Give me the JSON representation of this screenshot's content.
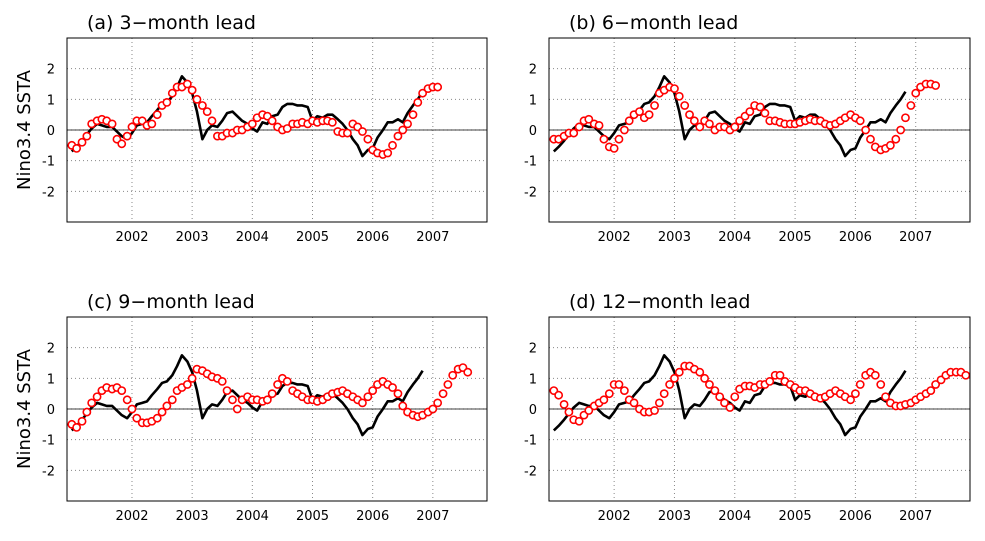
{
  "chart_data": [
    {
      "type": "line",
      "title": "(a) 3−month lead",
      "ylabel": "Nino3.4  SSTA",
      "xlim": [
        2000.92,
        2007.9
      ],
      "xticks": [
        2002,
        2003,
        2004,
        2005,
        2006,
        2007
      ],
      "ylim": [
        -3,
        3
      ],
      "yticks": [
        -2,
        -1,
        0,
        1,
        2
      ],
      "grid": true,
      "reference_line": 0,
      "x": [
        2001.0,
        2001.08,
        2001.17,
        2001.25,
        2001.33,
        2001.42,
        2001.5,
        2001.58,
        2001.67,
        2001.75,
        2001.83,
        2001.92,
        2002.0,
        2002.08,
        2002.17,
        2002.25,
        2002.33,
        2002.42,
        2002.5,
        2002.58,
        2002.67,
        2002.75,
        2002.83,
        2002.92,
        2003.0,
        2003.08,
        2003.17,
        2003.25,
        2003.33,
        2003.42,
        2003.5,
        2003.58,
        2003.67,
        2003.75,
        2003.83,
        2003.92,
        2004.0,
        2004.08,
        2004.17,
        2004.25,
        2004.33,
        2004.42,
        2004.5,
        2004.58,
        2004.67,
        2004.75,
        2004.83,
        2004.92,
        2005.0,
        2005.08,
        2005.17,
        2005.25,
        2005.33,
        2005.42,
        2005.5,
        2005.58,
        2005.67,
        2005.75,
        2005.83,
        2005.92,
        2006.0,
        2006.08,
        2006.17,
        2006.25,
        2006.33,
        2006.42,
        2006.5,
        2006.58,
        2006.67,
        2006.75,
        2006.83,
        2006.92,
        2007.0,
        2007.08
      ],
      "series": [
        {
          "color": "#000000",
          "style": "line",
          "values": [
            -0.7,
            -0.55,
            -0.35,
            -0.15,
            0.05,
            0.2,
            0.15,
            0.1,
            0.1,
            -0.05,
            -0.2,
            -0.3,
            -0.1,
            0.15,
            0.2,
            0.25,
            0.45,
            0.65,
            0.85,
            0.9,
            1.1,
            1.4,
            1.75,
            1.55,
            1.2,
            0.6,
            -0.3,
            0.0,
            0.15,
            0.1,
            0.3,
            0.55,
            0.6,
            0.45,
            0.3,
            0.2,
            0.05,
            -0.05,
            0.25,
            0.2,
            0.45,
            0.5,
            0.75,
            0.85,
            0.85,
            0.8,
            0.8,
            0.75,
            0.3,
            0.45,
            0.4,
            0.5,
            0.5,
            0.35,
            0.2,
            0.0,
            -0.3,
            -0.5,
            -0.85,
            -0.65,
            -0.6,
            -0.25,
            0.0,
            0.25,
            0.25,
            0.35,
            0.25,
            0.55,
            0.8,
            1.0,
            1.25,
            null,
            null,
            null
          ]
        },
        {
          "color": "#ff0000",
          "style": "markers",
          "values": [
            -0.5,
            -0.6,
            -0.4,
            -0.2,
            0.2,
            0.3,
            0.35,
            0.3,
            0.2,
            -0.3,
            -0.45,
            -0.2,
            0.1,
            0.3,
            0.3,
            0.15,
            0.2,
            0.5,
            0.8,
            0.9,
            1.2,
            1.4,
            1.4,
            1.5,
            1.3,
            1.0,
            0.8,
            0.6,
            0.3,
            -0.2,
            -0.2,
            -0.1,
            -0.1,
            0.0,
            0.0,
            0.1,
            0.2,
            0.4,
            0.5,
            0.45,
            0.3,
            0.1,
            0.0,
            0.05,
            0.2,
            0.2,
            0.25,
            0.2,
            0.3,
            0.25,
            0.3,
            0.3,
            0.25,
            -0.05,
            -0.1,
            -0.1,
            0.2,
            0.1,
            -0.05,
            -0.3,
            -0.65,
            -0.75,
            -0.8,
            -0.75,
            -0.5,
            -0.2,
            0.0,
            0.2,
            0.5,
            0.9,
            1.2,
            1.35,
            1.4,
            1.4
          ]
        }
      ]
    },
    {
      "type": "line",
      "title": "(b) 6−month lead",
      "xlim": [
        2000.92,
        2007.9
      ],
      "xticks": [
        2002,
        2003,
        2004,
        2005,
        2006,
        2007
      ],
      "ylim": [
        -3,
        3
      ],
      "yticks": [
        -2,
        -1,
        0,
        1,
        2
      ],
      "grid": true,
      "reference_line": 0,
      "x": [
        2001.0,
        2001.08,
        2001.17,
        2001.25,
        2001.33,
        2001.42,
        2001.5,
        2001.58,
        2001.67,
        2001.75,
        2001.83,
        2001.92,
        2002.0,
        2002.08,
        2002.17,
        2002.25,
        2002.33,
        2002.42,
        2002.5,
        2002.58,
        2002.67,
        2002.75,
        2002.83,
        2002.92,
        2003.0,
        2003.08,
        2003.17,
        2003.25,
        2003.33,
        2003.42,
        2003.5,
        2003.58,
        2003.67,
        2003.75,
        2003.83,
        2003.92,
        2004.0,
        2004.08,
        2004.17,
        2004.25,
        2004.33,
        2004.42,
        2004.5,
        2004.58,
        2004.67,
        2004.75,
        2004.83,
        2004.92,
        2005.0,
        2005.08,
        2005.17,
        2005.25,
        2005.33,
        2005.42,
        2005.5,
        2005.58,
        2005.67,
        2005.75,
        2005.83,
        2005.92,
        2006.0,
        2006.08,
        2006.17,
        2006.25,
        2006.33,
        2006.42,
        2006.5,
        2006.58,
        2006.67,
        2006.75,
        2006.83,
        2006.92,
        2007.0,
        2007.08,
        2007.17,
        2007.25,
        2007.33
      ],
      "series": [
        {
          "color": "#000000",
          "style": "line",
          "values": [
            -0.7,
            -0.55,
            -0.35,
            -0.15,
            0.05,
            0.2,
            0.15,
            0.1,
            0.1,
            -0.05,
            -0.2,
            -0.3,
            -0.1,
            0.15,
            0.2,
            0.25,
            0.45,
            0.65,
            0.85,
            0.9,
            1.1,
            1.4,
            1.75,
            1.55,
            1.2,
            0.6,
            -0.3,
            0.0,
            0.15,
            0.1,
            0.3,
            0.55,
            0.6,
            0.45,
            0.3,
            0.2,
            0.05,
            -0.05,
            0.25,
            0.2,
            0.45,
            0.5,
            0.75,
            0.85,
            0.85,
            0.8,
            0.8,
            0.75,
            0.3,
            0.45,
            0.4,
            0.5,
            0.5,
            0.35,
            0.2,
            0.0,
            -0.3,
            -0.5,
            -0.85,
            -0.65,
            -0.6,
            -0.25,
            0.0,
            0.25,
            0.25,
            0.35,
            0.25,
            0.55,
            0.8,
            1.0,
            1.25,
            null,
            null,
            null,
            null,
            null,
            null
          ]
        },
        {
          "color": "#ff0000",
          "style": "markers",
          "values": [
            -0.3,
            -0.3,
            -0.2,
            -0.1,
            -0.1,
            0.1,
            0.3,
            0.35,
            0.2,
            0.15,
            -0.3,
            -0.55,
            -0.6,
            -0.3,
            0.0,
            0.3,
            0.5,
            0.6,
            0.4,
            0.5,
            0.8,
            1.2,
            1.3,
            1.4,
            1.35,
            1.1,
            0.8,
            0.5,
            0.3,
            0.1,
            0.3,
            0.2,
            0.0,
            0.1,
            0.1,
            0.0,
            0.1,
            0.3,
            0.45,
            0.6,
            0.8,
            0.75,
            0.55,
            0.3,
            0.3,
            0.25,
            0.2,
            0.2,
            0.2,
            0.25,
            0.3,
            0.35,
            0.3,
            0.3,
            0.2,
            0.15,
            0.2,
            0.3,
            0.4,
            0.5,
            0.4,
            0.3,
            0.0,
            -0.3,
            -0.55,
            -0.65,
            -0.6,
            -0.5,
            -0.3,
            0.0,
            0.4,
            0.8,
            1.2,
            1.4,
            1.5,
            1.5,
            1.45
          ]
        }
      ]
    },
    {
      "type": "line",
      "title": "(c) 9−month lead",
      "ylabel": "Nino3.4  SSTA",
      "xlim": [
        2000.92,
        2007.9
      ],
      "xticks": [
        2002,
        2003,
        2004,
        2005,
        2006,
        2007
      ],
      "ylim": [
        -3,
        3
      ],
      "yticks": [
        -2,
        -1,
        0,
        1,
        2
      ],
      "grid": true,
      "reference_line": 0,
      "x": [
        2001.0,
        2001.08,
        2001.17,
        2001.25,
        2001.33,
        2001.42,
        2001.5,
        2001.58,
        2001.67,
        2001.75,
        2001.83,
        2001.92,
        2002.0,
        2002.08,
        2002.17,
        2002.25,
        2002.33,
        2002.42,
        2002.5,
        2002.58,
        2002.67,
        2002.75,
        2002.83,
        2002.92,
        2003.0,
        2003.08,
        2003.17,
        2003.25,
        2003.33,
        2003.42,
        2003.5,
        2003.58,
        2003.67,
        2003.75,
        2003.83,
        2003.92,
        2004.0,
        2004.08,
        2004.17,
        2004.25,
        2004.33,
        2004.42,
        2004.5,
        2004.58,
        2004.67,
        2004.75,
        2004.83,
        2004.92,
        2005.0,
        2005.08,
        2005.17,
        2005.25,
        2005.33,
        2005.42,
        2005.5,
        2005.58,
        2005.67,
        2005.75,
        2005.83,
        2005.92,
        2006.0,
        2006.08,
        2006.17,
        2006.25,
        2006.33,
        2006.42,
        2006.5,
        2006.58,
        2006.67,
        2006.75,
        2006.83,
        2006.92,
        2007.0,
        2007.08,
        2007.17,
        2007.25,
        2007.33,
        2007.42,
        2007.5,
        2007.58
      ],
      "series": [
        {
          "color": "#000000",
          "style": "line",
          "values": [
            -0.7,
            -0.55,
            -0.35,
            -0.15,
            0.05,
            0.2,
            0.15,
            0.1,
            0.1,
            -0.05,
            -0.2,
            -0.3,
            -0.1,
            0.15,
            0.2,
            0.25,
            0.45,
            0.65,
            0.85,
            0.9,
            1.1,
            1.4,
            1.75,
            1.55,
            1.2,
            0.6,
            -0.3,
            0.0,
            0.15,
            0.1,
            0.3,
            0.55,
            0.6,
            0.45,
            0.3,
            0.2,
            0.05,
            -0.05,
            0.25,
            0.2,
            0.45,
            0.5,
            0.75,
            0.85,
            0.85,
            0.8,
            0.8,
            0.75,
            0.3,
            0.45,
            0.4,
            0.5,
            0.5,
            0.35,
            0.2,
            0.0,
            -0.3,
            -0.5,
            -0.85,
            -0.65,
            -0.6,
            -0.25,
            0.0,
            0.25,
            0.25,
            0.35,
            0.25,
            0.55,
            0.8,
            1.0,
            1.25,
            null,
            null,
            null,
            null,
            null,
            null,
            null,
            null,
            null
          ]
        },
        {
          "color": "#ff0000",
          "style": "markers",
          "values": [
            -0.5,
            -0.6,
            -0.4,
            -0.1,
            0.2,
            0.4,
            0.6,
            0.7,
            0.65,
            0.7,
            0.6,
            0.3,
            0.0,
            -0.3,
            -0.45,
            -0.45,
            -0.4,
            -0.3,
            -0.1,
            0.1,
            0.3,
            0.6,
            0.7,
            0.8,
            1.0,
            1.3,
            1.25,
            1.15,
            1.05,
            1.0,
            0.9,
            0.6,
            0.3,
            0.0,
            0.3,
            0.4,
            0.3,
            0.3,
            0.25,
            0.3,
            0.5,
            0.8,
            1.0,
            0.9,
            0.6,
            0.5,
            0.4,
            0.3,
            0.3,
            0.25,
            0.3,
            0.4,
            0.5,
            0.55,
            0.6,
            0.5,
            0.4,
            0.3,
            0.2,
            0.4,
            0.6,
            0.8,
            0.9,
            0.8,
            0.7,
            0.5,
            0.1,
            -0.1,
            -0.2,
            -0.25,
            -0.2,
            -0.1,
            0.0,
            0.2,
            0.5,
            0.8,
            1.1,
            1.3,
            1.35,
            1.2
          ]
        }
      ]
    },
    {
      "type": "line",
      "title": "(d) 12−month lead",
      "xlim": [
        2000.92,
        2007.9
      ],
      "xticks": [
        2002,
        2003,
        2004,
        2005,
        2006,
        2007
      ],
      "ylim": [
        -3,
        3
      ],
      "yticks": [
        -2,
        -1,
        0,
        1,
        2
      ],
      "grid": true,
      "reference_line": 0,
      "x": [
        2001.0,
        2001.08,
        2001.17,
        2001.25,
        2001.33,
        2001.42,
        2001.5,
        2001.58,
        2001.67,
        2001.75,
        2001.83,
        2001.92,
        2002.0,
        2002.08,
        2002.17,
        2002.25,
        2002.33,
        2002.42,
        2002.5,
        2002.58,
        2002.67,
        2002.75,
        2002.83,
        2002.92,
        2003.0,
        2003.08,
        2003.17,
        2003.25,
        2003.33,
        2003.42,
        2003.5,
        2003.58,
        2003.67,
        2003.75,
        2003.83,
        2003.92,
        2004.0,
        2004.08,
        2004.17,
        2004.25,
        2004.33,
        2004.42,
        2004.5,
        2004.58,
        2004.67,
        2004.75,
        2004.83,
        2004.92,
        2005.0,
        2005.08,
        2005.17,
        2005.25,
        2005.33,
        2005.42,
        2005.5,
        2005.58,
        2005.67,
        2005.75,
        2005.83,
        2005.92,
        2006.0,
        2006.08,
        2006.17,
        2006.25,
        2006.33,
        2006.42,
        2006.5,
        2006.58,
        2006.67,
        2006.75,
        2006.83,
        2006.92,
        2007.0,
        2007.08,
        2007.17,
        2007.25,
        2007.33,
        2007.42,
        2007.5,
        2007.58,
        2007.67,
        2007.75,
        2007.83
      ],
      "series": [
        {
          "color": "#000000",
          "style": "line",
          "values": [
            -0.7,
            -0.55,
            -0.35,
            -0.15,
            0.05,
            0.2,
            0.15,
            0.1,
            0.1,
            -0.05,
            -0.2,
            -0.3,
            -0.1,
            0.15,
            0.2,
            0.25,
            0.45,
            0.65,
            0.85,
            0.9,
            1.1,
            1.4,
            1.75,
            1.55,
            1.2,
            0.6,
            -0.3,
            0.0,
            0.15,
            0.1,
            0.3,
            0.55,
            0.6,
            0.45,
            0.3,
            0.2,
            0.05,
            -0.05,
            0.25,
            0.2,
            0.45,
            0.5,
            0.75,
            0.85,
            0.85,
            0.8,
            0.8,
            0.75,
            0.3,
            0.45,
            0.4,
            0.5,
            0.5,
            0.35,
            0.2,
            0.0,
            -0.3,
            -0.5,
            -0.85,
            -0.65,
            -0.6,
            -0.25,
            0.0,
            0.25,
            0.25,
            0.35,
            0.25,
            0.55,
            0.8,
            1.0,
            1.25,
            null,
            null,
            null,
            null,
            null,
            null,
            null,
            null,
            null,
            null,
            null,
            null
          ]
        },
        {
          "color": "#ff0000",
          "style": "markers",
          "values": [
            0.6,
            0.45,
            0.15,
            -0.1,
            -0.35,
            -0.4,
            -0.2,
            -0.05,
            0.1,
            0.2,
            0.3,
            0.5,
            0.8,
            0.8,
            0.6,
            0.3,
            0.2,
            0.0,
            -0.1,
            -0.1,
            -0.05,
            0.2,
            0.5,
            0.8,
            1.0,
            1.2,
            1.4,
            1.4,
            1.3,
            1.2,
            1.0,
            0.8,
            0.6,
            0.4,
            0.2,
            0.05,
            0.4,
            0.65,
            0.75,
            0.75,
            0.7,
            0.8,
            0.8,
            0.9,
            1.1,
            1.1,
            0.9,
            0.8,
            0.7,
            0.6,
            0.6,
            0.5,
            0.4,
            0.35,
            0.4,
            0.5,
            0.6,
            0.5,
            0.4,
            0.3,
            0.5,
            0.8,
            1.1,
            1.2,
            1.1,
            0.8,
            0.4,
            0.2,
            0.1,
            0.1,
            0.15,
            0.2,
            0.3,
            0.4,
            0.5,
            0.6,
            0.8,
            0.95,
            1.1,
            1.2,
            1.2,
            1.2,
            1.1
          ]
        }
      ]
    }
  ]
}
